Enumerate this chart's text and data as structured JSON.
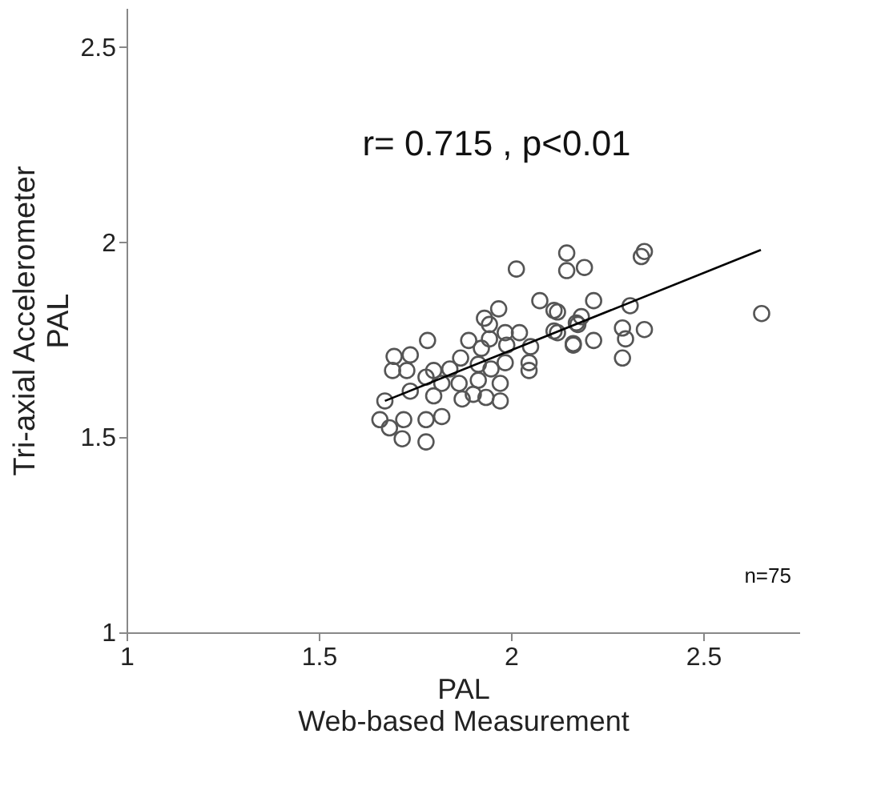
{
  "chart_data": {
    "type": "scatter",
    "xlabel": "PAL\nWeb-based Measurement",
    "ylabel": "Tri-axial Accelerometer\nPAL",
    "xlim": [
      1,
      2.75
    ],
    "xticks": [
      1,
      1.5,
      2,
      2.5
    ],
    "ylim": [
      1,
      2.6
    ],
    "yticks": [
      1,
      1.5,
      2,
      2.5
    ],
    "grid": false,
    "annotations": [
      "r= 0.715 , p<0.01",
      "n=75"
    ],
    "series": [
      {
        "marker": "circle",
        "color": "#555555",
        "x": [
          2.145,
          2.145,
          2.014,
          2.191,
          2.075,
          2.112,
          1.968,
          1.931,
          1.944,
          1.985,
          2.022,
          1.783,
          1.89,
          1.944,
          1.923,
          1.989,
          2.051,
          2.112,
          2.162,
          2.174,
          1.696,
          1.738,
          1.692,
          1.729,
          1.869,
          1.841,
          1.799,
          1.985,
          2.047,
          2.047,
          1.948,
          1.915,
          1.779,
          1.82,
          1.865,
          1.915,
          1.972,
          1.738,
          1.799,
          1.873,
          1.935,
          1.972,
          1.902,
          1.672,
          1.659,
          1.684,
          1.721,
          1.717,
          1.779,
          1.82,
          1.779,
          2.339,
          2.347,
          2.215,
          2.31,
          2.121,
          2.183,
          2.17,
          2.121,
          2.29,
          2.347,
          2.298,
          2.162,
          2.215,
          2.29,
          2.652
        ],
        "values": [
          1.972,
          1.927,
          1.931,
          1.935,
          1.85,
          1.825,
          1.829,
          1.805,
          1.789,
          1.768,
          1.768,
          1.748,
          1.748,
          1.752,
          1.728,
          1.736,
          1.732,
          1.772,
          1.74,
          1.789,
          1.707,
          1.711,
          1.671,
          1.671,
          1.703,
          1.675,
          1.671,
          1.691,
          1.691,
          1.671,
          1.675,
          1.687,
          1.654,
          1.638,
          1.638,
          1.646,
          1.638,
          1.618,
          1.606,
          1.598,
          1.602,
          1.593,
          1.61,
          1.593,
          1.545,
          1.524,
          1.545,
          1.496,
          1.545,
          1.553,
          1.488,
          1.963,
          1.976,
          1.85,
          1.837,
          1.821,
          1.809,
          1.793,
          1.768,
          1.78,
          1.776,
          1.752,
          1.736,
          1.748,
          1.703,
          1.817
        ]
      },
      {
        "type": "line",
        "marker": "none",
        "color": "#000000",
        "x": [
          1.672,
          2.65
        ],
        "values": [
          1.593,
          1.98
        ]
      }
    ]
  }
}
